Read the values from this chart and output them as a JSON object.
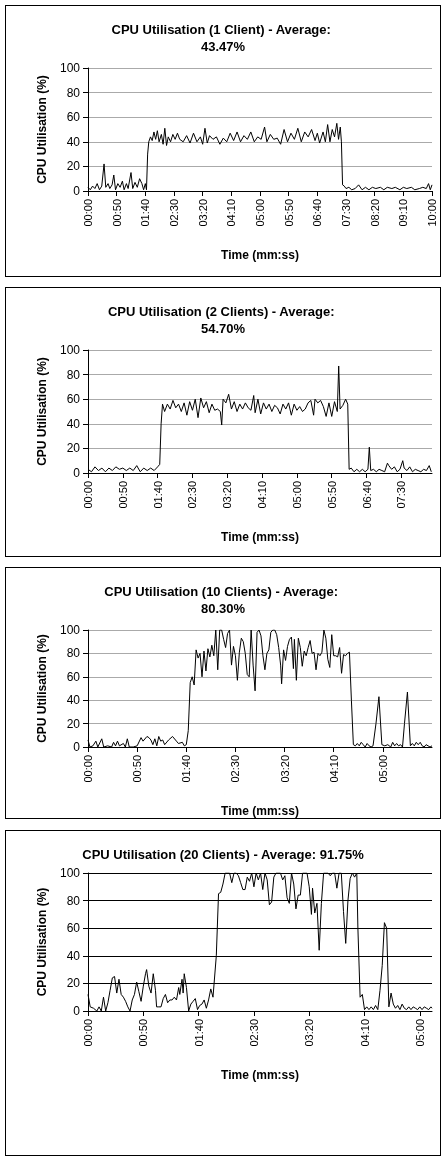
{
  "chart_data": [
    {
      "type": "line",
      "title": "CPU Utilisation (1 Client) - Average: 43.47%",
      "xlabel": "Time (mm:ss)",
      "ylabel": "CPU Utilisation (%)",
      "xlim": [
        0,
        600
      ],
      "ylim": [
        0,
        100
      ],
      "yticks": [
        0,
        20,
        40,
        60,
        80,
        100
      ],
      "grid": "y",
      "marker": "none",
      "line_style": "solid",
      "xticks": [
        {
          "value": 0,
          "label": "00:00"
        },
        {
          "value": 50,
          "label": "00:50"
        },
        {
          "value": 100,
          "label": "01:40"
        },
        {
          "value": 150,
          "label": "02:30"
        },
        {
          "value": 200,
          "label": "03:20"
        },
        {
          "value": 250,
          "label": "04:10"
        },
        {
          "value": 300,
          "label": "05:00"
        },
        {
          "value": 350,
          "label": "05:50"
        },
        {
          "value": 400,
          "label": "06:40"
        },
        {
          "value": 450,
          "label": "07:30"
        },
        {
          "value": 500,
          "label": "08:20"
        },
        {
          "value": 550,
          "label": "09:10"
        },
        {
          "value": 600,
          "label": "10:00"
        }
      ],
      "series": [
        {
          "color": "#000000",
          "x": [
            0,
            4,
            8,
            12,
            16,
            20,
            24,
            28,
            31,
            35,
            38,
            42,
            45,
            48,
            52,
            56,
            60,
            63,
            67,
            70,
            75,
            78,
            82,
            86,
            90,
            94,
            97,
            100,
            102,
            104,
            106,
            109,
            112,
            115,
            118,
            121,
            124,
            128,
            131,
            134,
            137,
            140,
            144,
            148,
            152,
            156,
            160,
            166,
            172,
            178,
            184,
            190,
            196,
            200,
            204,
            208,
            212,
            218,
            224,
            230,
            236,
            242,
            248,
            254,
            260,
            266,
            272,
            278,
            284,
            290,
            296,
            302,
            308,
            312,
            318,
            324,
            330,
            336,
            342,
            348,
            354,
            360,
            366,
            372,
            378,
            384,
            390,
            396,
            400,
            404,
            410,
            414,
            418,
            422,
            426,
            430,
            434,
            437,
            440,
            442,
            444,
            447,
            450,
            455,
            460,
            466,
            472,
            478,
            484,
            490,
            496,
            502,
            510,
            516,
            522,
            530,
            536,
            544,
            550,
            556,
            564,
            570,
            578,
            584,
            590,
            594,
            597,
            600
          ],
          "values": [
            3,
            1,
            4,
            2,
            6,
            1,
            4,
            22,
            3,
            6,
            2,
            5,
            13,
            1,
            6,
            3,
            8,
            1,
            6,
            2,
            15,
            2,
            7,
            3,
            10,
            6,
            1,
            6,
            1,
            30,
            40,
            44,
            41,
            48,
            42,
            49,
            40,
            46,
            38,
            51,
            37,
            44,
            40,
            46,
            42,
            47,
            42,
            40,
            45,
            39,
            47,
            40,
            44,
            38,
            51,
            39,
            45,
            42,
            44,
            38,
            43,
            40,
            47,
            41,
            48,
            40,
            45,
            42,
            48,
            40,
            44,
            42,
            52,
            40,
            46,
            42,
            43,
            38,
            50,
            40,
            47,
            42,
            51,
            40,
            48,
            44,
            50,
            41,
            47,
            39,
            48,
            40,
            54,
            40,
            50,
            44,
            55,
            42,
            52,
            40,
            5,
            4,
            2,
            3,
            1,
            2,
            5,
            1,
            3,
            1,
            3,
            2,
            3,
            1,
            3,
            2,
            3,
            1,
            3,
            2,
            3,
            1,
            2,
            3,
            2,
            6,
            1,
            5
          ]
        }
      ]
    },
    {
      "type": "line",
      "title": "CPU Utilisation (2 Clients) - Average: 54.70%",
      "xlabel": "Time (mm:ss)",
      "ylabel": "CPU Utilisation (%)",
      "xlim": [
        0,
        494
      ],
      "ylim": [
        0,
        100
      ],
      "yticks": [
        0,
        20,
        40,
        60,
        80,
        100
      ],
      "grid": "y",
      "marker": "none",
      "line_style": "solid",
      "xticks": [
        {
          "value": 0,
          "label": "00:00"
        },
        {
          "value": 50,
          "label": "00:50"
        },
        {
          "value": 100,
          "label": "01:40"
        },
        {
          "value": 150,
          "label": "02:30"
        },
        {
          "value": 200,
          "label": "03:20"
        },
        {
          "value": 250,
          "label": "04:10"
        },
        {
          "value": 300,
          "label": "05:00"
        },
        {
          "value": 350,
          "label": "05:50"
        },
        {
          "value": 400,
          "label": "06:40"
        },
        {
          "value": 450,
          "label": "07:30"
        }
      ],
      "series": [
        {
          "color": "#000000",
          "x": [
            0,
            5,
            10,
            15,
            20,
            25,
            30,
            35,
            40,
            45,
            50,
            55,
            60,
            65,
            70,
            75,
            80,
            85,
            90,
            95,
            100,
            103,
            105,
            107,
            110,
            114,
            118,
            122,
            126,
            130,
            134,
            138,
            142,
            146,
            150,
            154,
            158,
            162,
            166,
            170,
            174,
            178,
            182,
            186,
            190,
            192,
            194,
            198,
            202,
            206,
            210,
            214,
            218,
            222,
            226,
            230,
            234,
            238,
            240,
            244,
            248,
            252,
            256,
            260,
            264,
            268,
            272,
            276,
            280,
            284,
            288,
            292,
            296,
            300,
            304,
            308,
            312,
            316,
            320,
            324,
            326,
            330,
            334,
            338,
            342,
            346,
            350,
            354,
            358,
            360,
            362,
            366,
            370,
            373,
            375,
            378,
            382,
            386,
            390,
            394,
            398,
            402,
            404,
            406,
            410,
            414,
            418,
            422,
            426,
            430,
            432,
            436,
            440,
            444,
            448,
            452,
            454,
            458,
            462,
            466,
            470,
            474,
            478,
            482,
            486,
            490,
            493
          ],
          "values": [
            3,
            1,
            5,
            2,
            4,
            1,
            4,
            2,
            5,
            3,
            4,
            2,
            4,
            2,
            6,
            1,
            4,
            2,
            4,
            2,
            5,
            7,
            40,
            56,
            50,
            56,
            52,
            59,
            53,
            56,
            50,
            57,
            47,
            58,
            51,
            60,
            45,
            61,
            53,
            58,
            49,
            56,
            51,
            52,
            50,
            39,
            60,
            57,
            64,
            52,
            58,
            50,
            56,
            52,
            57,
            53,
            51,
            63,
            49,
            60,
            48,
            57,
            52,
            56,
            50,
            55,
            53,
            48,
            56,
            52,
            57,
            47,
            56,
            51,
            54,
            50,
            52,
            57,
            59,
            47,
            60,
            57,
            59,
            54,
            46,
            57,
            46,
            58,
            50,
            87,
            52,
            55,
            60,
            56,
            3,
            4,
            1,
            3,
            1,
            3,
            1,
            3,
            21,
            2,
            3,
            1,
            3,
            2,
            1,
            8,
            6,
            3,
            5,
            1,
            3,
            10,
            4,
            2,
            5,
            1,
            3,
            2,
            1,
            3,
            2,
            6,
            1
          ]
        }
      ]
    },
    {
      "type": "line",
      "title": "CPU Utilisation (10 Clients) - Average: 80.30%",
      "xlabel": "Time (mm:ss)",
      "ylabel": "CPU Utilisation (%)",
      "xlim": [
        0,
        350
      ],
      "ylim": [
        0,
        100
      ],
      "yticks": [
        0,
        20,
        40,
        60,
        80,
        100
      ],
      "grid": "y",
      "marker": "none",
      "line_style": "solid",
      "xticks": [
        {
          "value": 0,
          "label": "00:00"
        },
        {
          "value": 50,
          "label": "00:50"
        },
        {
          "value": 100,
          "label": "01:40"
        },
        {
          "value": 150,
          "label": "02:30"
        },
        {
          "value": 200,
          "label": "03:20"
        },
        {
          "value": 250,
          "label": "04:10"
        },
        {
          "value": 300,
          "label": "05:00"
        }
      ],
      "series": [
        {
          "color": "#000000",
          "x": [
            0,
            2,
            5,
            8,
            10,
            14,
            16,
            20,
            24,
            26,
            28,
            30,
            32,
            36,
            38,
            40,
            42,
            46,
            50,
            54,
            56,
            60,
            62,
            64,
            66,
            68,
            70,
            72,
            74,
            76,
            78,
            82,
            86,
            90,
            92,
            96,
            98,
            100,
            102,
            104,
            106,
            108,
            110,
            112,
            114,
            116,
            118,
            120,
            122,
            124,
            126,
            128,
            130,
            132,
            134,
            136,
            138,
            140,
            142,
            144,
            146,
            148,
            150,
            152,
            154,
            156,
            158,
            160,
            162,
            164,
            166,
            168,
            170,
            172,
            174,
            176,
            178,
            180,
            182,
            184,
            186,
            188,
            190,
            192,
            194,
            196,
            197,
            199,
            201,
            203,
            205,
            207,
            209,
            210,
            212,
            214,
            216,
            218,
            220,
            222,
            224,
            226,
            228,
            230,
            232,
            234,
            236,
            238,
            240,
            242,
            244,
            246,
            248,
            250,
            252,
            254,
            256,
            258,
            260,
            262,
            264,
            266,
            268,
            270,
            272,
            274,
            276,
            278,
            280,
            282,
            284,
            286,
            288,
            290,
            293,
            296,
            299,
            302,
            305,
            308,
            310,
            312,
            314,
            316,
            318,
            320,
            322,
            325,
            328,
            330,
            332,
            334,
            336,
            338,
            340,
            342,
            344,
            346,
            348,
            350
          ],
          "values": [
            6,
            0,
            1,
            5,
            0,
            7,
            0,
            1,
            0,
            4,
            1,
            5,
            1,
            3,
            0,
            7,
            0,
            0,
            1,
            8,
            5,
            9,
            8,
            6,
            2,
            7,
            1,
            9,
            5,
            6,
            2,
            6,
            9,
            5,
            3,
            4,
            1,
            2,
            14,
            55,
            60,
            53,
            83,
            76,
            80,
            60,
            82,
            65,
            84,
            77,
            87,
            78,
            100,
            66,
            100,
            100,
            92,
            85,
            97,
            100,
            70,
            86,
            78,
            57,
            81,
            93,
            90,
            80,
            62,
            60,
            100,
            70,
            48,
            98,
            100,
            95,
            78,
            66,
            80,
            83,
            98,
            100,
            100,
            96,
            85,
            70,
            54,
            83,
            74,
            86,
            92,
            94,
            67,
            92,
            57,
            93,
            85,
            69,
            82,
            78,
            85,
            91,
            80,
            81,
            66,
            80,
            78,
            81,
            100,
            93,
            75,
            68,
            96,
            78,
            78,
            77,
            85,
            63,
            79,
            78,
            80,
            81,
            40,
            2,
            1,
            3,
            1,
            4,
            2,
            0,
            3,
            1,
            0,
            1,
            20,
            43,
            2,
            1,
            2,
            0,
            4,
            1,
            3,
            1,
            2,
            0,
            20,
            47,
            1,
            3,
            1,
            4,
            2,
            4,
            1,
            0,
            2,
            1,
            0,
            1
          ]
        }
      ]
    },
    {
      "type": "line",
      "title": "CPU Utilisation (20 Clients) - Average: 91.75%",
      "xlabel": "Time (mm:ss)",
      "ylabel": "CPU Utilisation (%)",
      "xlim": [
        0,
        311
      ],
      "ylim": [
        0,
        100
      ],
      "yticks": [
        0,
        20,
        40,
        60,
        80,
        100
      ],
      "grid": "y",
      "marker": "none",
      "line_style": "solid",
      "xticks": [
        {
          "value": 0,
          "label": "00:00"
        },
        {
          "value": 50,
          "label": "00:50"
        },
        {
          "value": 100,
          "label": "01:40"
        },
        {
          "value": 150,
          "label": "02:30"
        },
        {
          "value": 200,
          "label": "03:20"
        },
        {
          "value": 250,
          "label": "04:10"
        },
        {
          "value": 300,
          "label": "05:00"
        }
      ],
      "series": [
        {
          "color": "#000000",
          "x": [
            0,
            2,
            5,
            8,
            10,
            12,
            14,
            16,
            18,
            20,
            22,
            24,
            26,
            28,
            30,
            32,
            34,
            36,
            38,
            40,
            42,
            44,
            46,
            48,
            50,
            52,
            53,
            55,
            57,
            59,
            61,
            62,
            64,
            66,
            68,
            70,
            72,
            74,
            76,
            78,
            80,
            82,
            83,
            85,
            86,
            87,
            89,
            91,
            93,
            95,
            97,
            99,
            101,
            103,
            105,
            107,
            109,
            111,
            113,
            116,
            118,
            120,
            122,
            124,
            126,
            128,
            130,
            132,
            134,
            136,
            138,
            140,
            142,
            144,
            146,
            148,
            150,
            152,
            154,
            156,
            158,
            160,
            162,
            164,
            166,
            168,
            170,
            172,
            174,
            176,
            178,
            180,
            182,
            184,
            186,
            188,
            190,
            192,
            194,
            196,
            198,
            200,
            202,
            203,
            205,
            207,
            209,
            211,
            213,
            215,
            217,
            219,
            221,
            223,
            225,
            227,
            229,
            231,
            233,
            235,
            237,
            239,
            241,
            243,
            244,
            246,
            248,
            250,
            252,
            254,
            256,
            258,
            260,
            262,
            264,
            266,
            268,
            270,
            272,
            274,
            276,
            278,
            280,
            282,
            284,
            286,
            288,
            290,
            292,
            294,
            296,
            298,
            300,
            302,
            304,
            306,
            308,
            310,
            311
          ],
          "values": [
            12,
            3,
            2,
            0,
            3,
            0,
            10,
            0,
            6,
            15,
            24,
            25,
            13,
            23,
            12,
            10,
            7,
            3,
            0,
            8,
            12,
            21,
            14,
            7,
            18,
            27,
            30,
            18,
            13,
            27,
            15,
            3,
            3,
            3,
            9,
            12,
            6,
            8,
            8,
            10,
            8,
            17,
            12,
            23,
            13,
            27,
            17,
            0,
            5,
            7,
            9,
            1,
            4,
            5,
            8,
            2,
            8,
            16,
            10,
            40,
            85,
            86,
            92,
            100,
            100,
            100,
            93,
            100,
            100,
            98,
            93,
            88,
            88,
            97,
            94,
            100,
            90,
            100,
            95,
            100,
            88,
            100,
            95,
            77,
            79,
            97,
            100,
            100,
            100,
            95,
            98,
            82,
            78,
            100,
            92,
            74,
            84,
            84,
            100,
            100,
            100,
            90,
            70,
            89,
            71,
            78,
            44,
            78,
            100,
            100,
            100,
            98,
            100,
            100,
            89,
            100,
            100,
            72,
            49,
            80,
            96,
            100,
            97,
            100,
            60,
            10,
            12,
            1,
            3,
            1,
            3,
            1,
            4,
            1,
            15,
            33,
            64,
            60,
            3,
            13,
            5,
            2,
            4,
            1,
            5,
            2,
            1,
            3,
            1,
            3,
            2,
            1,
            3,
            1,
            3,
            2,
            1,
            3,
            2
          ]
        }
      ]
    }
  ]
}
